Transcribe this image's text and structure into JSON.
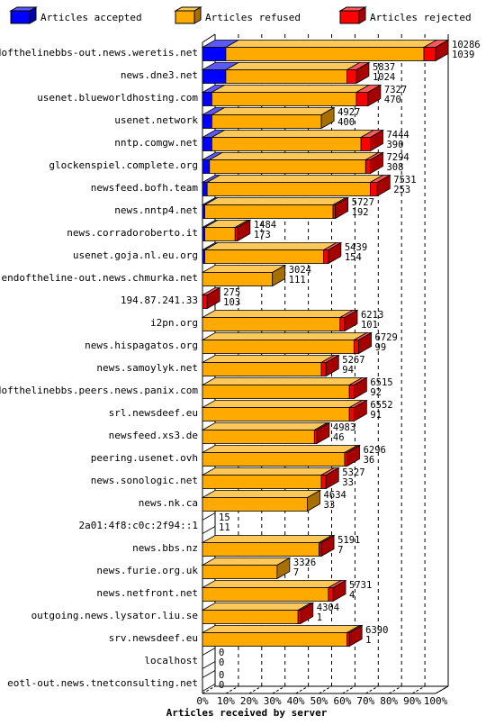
{
  "chart_data": {
    "type": "bar",
    "orientation": "horizontal",
    "stacked": true,
    "xlabel": "Articles received by server",
    "xlim": [
      0,
      100
    ],
    "x_ticks": [
      "0%",
      "10%",
      "20%",
      "30%",
      "40%",
      "50%",
      "60%",
      "70%",
      "80%",
      "90%",
      "100%"
    ],
    "legend_position": "top",
    "series": [
      {
        "name": "Articles accepted",
        "color": "#0000ff"
      },
      {
        "name": "Articles refused",
        "color": "#ffaa00"
      },
      {
        "name": "Articles rejected",
        "color": "#ff0000"
      }
    ],
    "rows": [
      {
        "server": "endofthelinebbs-out.news.weretis.net",
        "accepted_pct": 10,
        "refused_pct": 85,
        "rejected_pct": 5,
        "total": "10286",
        "second": "1039"
      },
      {
        "server": "news.dne3.net",
        "accepted_pct": 10,
        "refused_pct": 52,
        "rejected_pct": 4,
        "total": "5837",
        "second": "1024"
      },
      {
        "server": "usenet.blueworldhosting.com",
        "accepted_pct": 4,
        "refused_pct": 62,
        "rejected_pct": 5,
        "total": "7327",
        "second": "470"
      },
      {
        "server": "usenet.network",
        "accepted_pct": 4,
        "refused_pct": 47,
        "rejected_pct": 0,
        "total": "4927",
        "second": "400"
      },
      {
        "server": "nntp.comgw.net",
        "accepted_pct": 4,
        "refused_pct": 64,
        "rejected_pct": 4,
        "total": "7444",
        "second": "390"
      },
      {
        "server": "glockenspiel.complete.org",
        "accepted_pct": 3,
        "refused_pct": 67,
        "rejected_pct": 2,
        "total": "7294",
        "second": "308"
      },
      {
        "server": "newsfeed.bofh.team",
        "accepted_pct": 2,
        "refused_pct": 70,
        "rejected_pct": 3,
        "total": "7531",
        "second": "253"
      },
      {
        "server": "news.nntp4.net",
        "accepted_pct": 1,
        "refused_pct": 55,
        "rejected_pct": 1,
        "total": "5727",
        "second": "192"
      },
      {
        "server": "news.corradoroberto.it",
        "accepted_pct": 1,
        "refused_pct": 13,
        "rejected_pct": 1,
        "total": "1484",
        "second": "173"
      },
      {
        "server": "usenet.goja.nl.eu.org",
        "accepted_pct": 1,
        "refused_pct": 51,
        "rejected_pct": 2,
        "total": "5439",
        "second": "154"
      },
      {
        "server": "endoftheline-out.news.chmurka.net",
        "accepted_pct": 0,
        "refused_pct": 30,
        "rejected_pct": 0,
        "total": "3024",
        "second": "111"
      },
      {
        "server": "194.87.241.33",
        "accepted_pct": 0,
        "refused_pct": 0,
        "rejected_pct": 2,
        "total": "275",
        "second": "103"
      },
      {
        "server": "i2pn.org",
        "accepted_pct": 0,
        "refused_pct": 59,
        "rejected_pct": 2,
        "total": "6213",
        "second": "101"
      },
      {
        "server": "news.hispagatos.org",
        "accepted_pct": 0,
        "refused_pct": 65,
        "rejected_pct": 2,
        "total": "6729",
        "second": "99"
      },
      {
        "server": "news.samoylyk.net",
        "accepted_pct": 0,
        "refused_pct": 51,
        "rejected_pct": 2,
        "total": "5267",
        "second": "94"
      },
      {
        "server": "endofthelinebbs.peers.news.panix.com",
        "accepted_pct": 0,
        "refused_pct": 63,
        "rejected_pct": 2,
        "total": "6515",
        "second": "92"
      },
      {
        "server": "srl.newsdeef.eu",
        "accepted_pct": 0,
        "refused_pct": 63,
        "rejected_pct": 2,
        "total": "6552",
        "second": "91"
      },
      {
        "server": "newsfeed.xs3.de",
        "accepted_pct": 0,
        "refused_pct": 48,
        "rejected_pct": 1,
        "total": "4983",
        "second": "46"
      },
      {
        "server": "peering.usenet.ovh",
        "accepted_pct": 0,
        "refused_pct": 61,
        "rejected_pct": 1,
        "total": "6296",
        "second": "36"
      },
      {
        "server": "news.sonologic.net",
        "accepted_pct": 0,
        "refused_pct": 51,
        "rejected_pct": 2,
        "total": "5327",
        "second": "33"
      },
      {
        "server": "news.nk.ca",
        "accepted_pct": 0,
        "refused_pct": 45,
        "rejected_pct": 0,
        "total": "4634",
        "second": "33"
      },
      {
        "server": "2a01:4f8:c0c:2f94::1",
        "accepted_pct": 0,
        "refused_pct": 0,
        "rejected_pct": 0,
        "total": "15",
        "second": "11"
      },
      {
        "server": "news.bbs.nz",
        "accepted_pct": 0,
        "refused_pct": 50,
        "rejected_pct": 1,
        "total": "5191",
        "second": "7"
      },
      {
        "server": "news.furie.org.uk",
        "accepted_pct": 0,
        "refused_pct": 32,
        "rejected_pct": 0,
        "total": "3326",
        "second": "7"
      },
      {
        "server": "news.netfront.net",
        "accepted_pct": 0,
        "refused_pct": 54,
        "rejected_pct": 2,
        "total": "5731",
        "second": "4"
      },
      {
        "server": "outgoing.news.lysator.liu.se",
        "accepted_pct": 0,
        "refused_pct": 41,
        "rejected_pct": 1,
        "total": "4304",
        "second": "1"
      },
      {
        "server": "srv.newsdeef.eu",
        "accepted_pct": 0,
        "refused_pct": 62,
        "rejected_pct": 1,
        "total": "6390",
        "second": "1"
      },
      {
        "server": "localhost",
        "accepted_pct": 0,
        "refused_pct": 0,
        "rejected_pct": 0,
        "total": "0",
        "second": "0"
      },
      {
        "server": "eotl-out.news.tnetconsulting.net",
        "accepted_pct": 0,
        "refused_pct": 0,
        "rejected_pct": 0,
        "total": "0",
        "second": "0"
      }
    ]
  }
}
